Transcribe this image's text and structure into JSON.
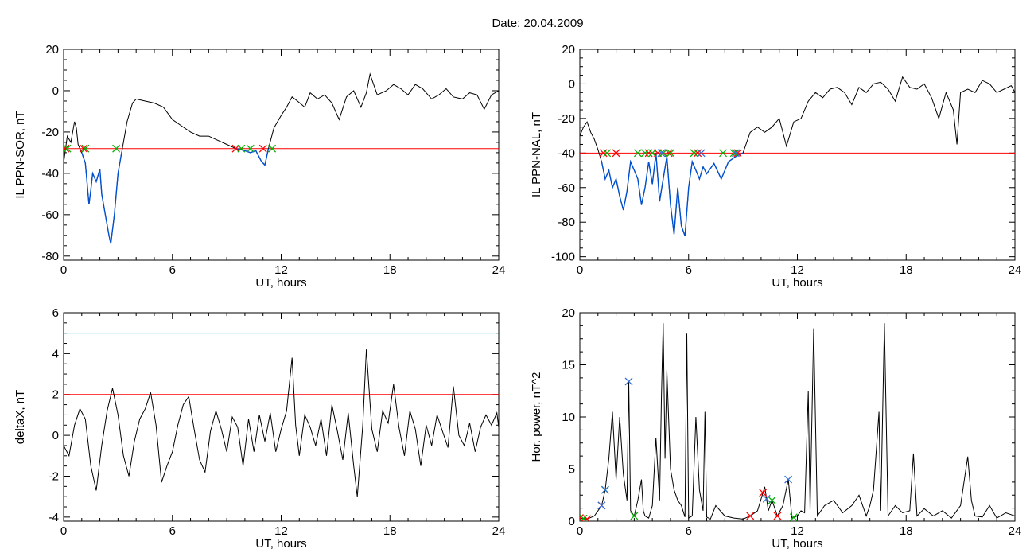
{
  "figure": {
    "title": "Date:  20.04.2009"
  },
  "colors": {
    "trace": "#000000",
    "threshold": "#ff0000",
    "level": "#00a0c8",
    "below": "#0050d0",
    "mark_red": "#ff0000",
    "mark_green": "#00b000",
    "mark_blue": "#2f6fd8"
  },
  "chart_data": [
    {
      "id": "ppn_sor",
      "type": "line",
      "xlabel": "UT, hours",
      "ylabel": "IL PPN-SOR, nT",
      "xlim": [
        0,
        24
      ],
      "ylim": [
        -82,
        20
      ],
      "xticks": [
        0,
        6,
        12,
        18,
        24
      ],
      "yticks": [
        20,
        0,
        -20,
        -40,
        -60,
        -80
      ],
      "threshold": -28,
      "series": [
        {
          "x": [
            0,
            0.2,
            0.4,
            0.6,
            0.7,
            0.8,
            1.0,
            1.2,
            1.4,
            1.5,
            1.6,
            1.8,
            2.0,
            2.1,
            2.3,
            2.5,
            2.6,
            2.8,
            3.0,
            3.2,
            3.5,
            3.8,
            4.0,
            4.5,
            5.0,
            5.5,
            6.0,
            6.5,
            7.0,
            7.5,
            8.0,
            8.5,
            9.0,
            9.5,
            10.0,
            10.3,
            10.6,
            10.9,
            11.1,
            11.3,
            11.6,
            12.0,
            12.3,
            12.6,
            12.9,
            13.3,
            13.6,
            14.0,
            14.4,
            14.8,
            15.2,
            15.6,
            16.0,
            16.4,
            16.7,
            16.9,
            17.3,
            17.8,
            18.2,
            18.6,
            19.0,
            19.4,
            19.8,
            20.3,
            20.7,
            21.1,
            21.5,
            22.0,
            22.4,
            22.8,
            23.2,
            23.6,
            24.0
          ],
          "y": [
            -35,
            -22,
            -25,
            -15,
            -18,
            -26,
            -30,
            -35,
            -55,
            -48,
            -40,
            -44,
            -38,
            -50,
            -60,
            -70,
            -74,
            -60,
            -40,
            -30,
            -15,
            -6,
            -4,
            -5,
            -6,
            -8,
            -14,
            -17,
            -20,
            -22,
            -22,
            -24,
            -26,
            -28,
            -29,
            -30,
            -29,
            -34,
            -36,
            -28,
            -18,
            -12,
            -8,
            -3,
            -5,
            -8,
            -1,
            -4,
            -2,
            -6,
            -14,
            -3,
            0,
            -8,
            -1,
            8,
            -2,
            0,
            3,
            1,
            -2,
            3,
            1,
            -4,
            -2,
            1,
            -3,
            -4,
            -1,
            -2,
            -9,
            -2,
            0
          ]
        }
      ],
      "marks": {
        "red_x": [
          0.1,
          1.1,
          9.5,
          11.0
        ],
        "green_x": [
          0.2,
          1.2,
          2.9,
          9.8,
          10.3,
          11.5
        ]
      }
    },
    {
      "id": "ppn_nal",
      "type": "line",
      "xlabel": "UT, hours",
      "ylabel": "IL PPN-NAL, nT",
      "xlim": [
        0,
        24
      ],
      "ylim": [
        -102,
        20
      ],
      "xticks": [
        0,
        6,
        12,
        18,
        24
      ],
      "yticks": [
        20,
        0,
        -20,
        -40,
        -60,
        -80,
        -100
      ],
      "threshold": -40,
      "series": [
        {
          "x": [
            0,
            0.2,
            0.4,
            0.6,
            0.8,
            1.0,
            1.2,
            1.4,
            1.6,
            1.8,
            2.0,
            2.2,
            2.4,
            2.6,
            2.8,
            3.0,
            3.2,
            3.4,
            3.6,
            3.8,
            4.0,
            4.2,
            4.4,
            4.6,
            4.8,
            5.0,
            5.2,
            5.4,
            5.6,
            5.8,
            6.0,
            6.2,
            6.4,
            6.6,
            6.8,
            7.0,
            7.4,
            7.8,
            8.2,
            8.6,
            9.0,
            9.4,
            9.8,
            10.2,
            10.6,
            11.0,
            11.4,
            11.8,
            12.2,
            12.6,
            13.0,
            13.4,
            13.8,
            14.2,
            14.6,
            15.0,
            15.4,
            15.8,
            16.2,
            16.6,
            17.0,
            17.4,
            17.8,
            18.2,
            18.6,
            19.0,
            19.4,
            19.8,
            20.2,
            20.6,
            20.8,
            21.0,
            21.4,
            21.8,
            22.2,
            22.6,
            23.0,
            23.4,
            23.8,
            24.0
          ],
          "y": [
            -30,
            -25,
            -22,
            -28,
            -32,
            -38,
            -45,
            -55,
            -50,
            -60,
            -55,
            -65,
            -73,
            -62,
            -45,
            -50,
            -55,
            -70,
            -60,
            -45,
            -58,
            -40,
            -68,
            -55,
            -42,
            -70,
            -87,
            -60,
            -82,
            -88,
            -60,
            -45,
            -50,
            -55,
            -48,
            -52,
            -46,
            -55,
            -45,
            -42,
            -40,
            -28,
            -25,
            -28,
            -25,
            -20,
            -36,
            -22,
            -20,
            -10,
            -5,
            -8,
            -3,
            -2,
            -5,
            -12,
            -2,
            -5,
            0,
            1,
            -3,
            -10,
            4,
            -2,
            -3,
            0,
            -8,
            -20,
            -5,
            -15,
            -35,
            -5,
            -3,
            -5,
            2,
            0,
            -5,
            -3,
            -1,
            -5
          ]
        }
      ],
      "marks": {
        "red_x": [
          1.3,
          2.0,
          3.8,
          4.3,
          4.9,
          6.5,
          8.7
        ],
        "green_x": [
          1.5,
          3.2,
          3.6,
          4.0,
          4.6,
          5.0,
          6.3,
          7.9,
          8.5
        ],
        "blue_x": [
          4.5,
          6.7,
          8.6
        ]
      }
    },
    {
      "id": "deltax",
      "type": "line",
      "xlabel": "UT, hours",
      "ylabel": "deltaX, nT",
      "xlim": [
        0,
        24
      ],
      "ylim": [
        -4.2,
        6
      ],
      "xticks": [
        0,
        6,
        12,
        18,
        24
      ],
      "yticks": [
        6,
        4,
        2,
        0,
        -2,
        -4
      ],
      "threshold": 2,
      "level": 5,
      "series": [
        {
          "x": [
            0,
            0.3,
            0.6,
            0.9,
            1.2,
            1.5,
            1.8,
            2.1,
            2.4,
            2.7,
            3.0,
            3.3,
            3.6,
            3.9,
            4.2,
            4.5,
            4.8,
            5.1,
            5.4,
            5.7,
            6.0,
            6.3,
            6.6,
            6.9,
            7.2,
            7.5,
            7.8,
            8.1,
            8.4,
            8.7,
            9.0,
            9.3,
            9.6,
            9.9,
            10.2,
            10.5,
            10.8,
            11.1,
            11.4,
            11.7,
            12.0,
            12.3,
            12.6,
            12.8,
            13.0,
            13.3,
            13.6,
            13.9,
            14.2,
            14.5,
            14.8,
            15.1,
            15.4,
            15.7,
            16.0,
            16.2,
            16.5,
            16.7,
            17.0,
            17.3,
            17.6,
            17.9,
            18.2,
            18.5,
            18.8,
            19.1,
            19.4,
            19.7,
            20.0,
            20.3,
            20.6,
            20.9,
            21.2,
            21.5,
            21.8,
            22.1,
            22.4,
            22.7,
            23.0,
            23.3,
            23.6,
            23.9,
            24.0
          ],
          "y": [
            -0.5,
            -1.0,
            0.5,
            1.3,
            0.8,
            -1.5,
            -2.7,
            -0.5,
            1.2,
            2.3,
            1.0,
            -1.0,
            -2.0,
            -0.3,
            0.8,
            1.3,
            2.1,
            0.5,
            -2.3,
            -1.5,
            -0.8,
            0.5,
            1.5,
            1.9,
            0.3,
            -1.2,
            -1.8,
            0.2,
            1.2,
            0.3,
            -0.8,
            0.9,
            0.4,
            -1.5,
            0.8,
            -0.8,
            1.0,
            -0.3,
            1.1,
            -0.8,
            0.3,
            1.2,
            3.8,
            0.5,
            -1.0,
            1.0,
            0.4,
            -0.5,
            0.8,
            -1.0,
            1.5,
            0.2,
            -1.2,
            1.1,
            -1.5,
            -3.0,
            0.5,
            4.2,
            0.3,
            -0.8,
            1.2,
            0.6,
            2.5,
            0.4,
            -1.0,
            1.2,
            0.3,
            -1.5,
            0.5,
            -0.5,
            1.0,
            0.2,
            -0.6,
            2.4,
            0.0,
            -0.5,
            0.6,
            -0.8,
            0.4,
            1.0,
            0.5,
            1.1,
            0.4
          ]
        }
      ]
    },
    {
      "id": "hor_power",
      "type": "line",
      "xlabel": "UT, hours",
      "ylabel": "Hor. power, nT^2",
      "xlim": [
        0,
        24
      ],
      "ylim": [
        0,
        20
      ],
      "xticks": [
        0,
        6,
        12,
        18,
        24
      ],
      "yticks": [
        20,
        15,
        10,
        5,
        0
      ],
      "series": [
        {
          "x": [
            0,
            0.4,
            0.8,
            1.2,
            1.4,
            1.6,
            1.8,
            2.0,
            2.2,
            2.4,
            2.6,
            2.7,
            2.8,
            3.0,
            3.2,
            3.4,
            3.5,
            3.6,
            3.8,
            4.0,
            4.2,
            4.4,
            4.5,
            4.6,
            4.7,
            4.8,
            5.0,
            5.2,
            5.4,
            5.6,
            5.8,
            5.9,
            6.0,
            6.2,
            6.4,
            6.6,
            6.8,
            6.9,
            7.0,
            7.2,
            7.5,
            8.0,
            8.5,
            9.0,
            9.4,
            9.8,
            10.2,
            10.4,
            10.6,
            10.9,
            11.2,
            11.5,
            11.7,
            12.0,
            12.2,
            12.4,
            12.6,
            12.7,
            12.9,
            13.1,
            13.5,
            14.0,
            14.5,
            15.0,
            15.4,
            15.8,
            16.0,
            16.2,
            16.5,
            16.6,
            16.8,
            17.0,
            17.4,
            17.8,
            18.2,
            18.4,
            18.6,
            19.0,
            19.5,
            20.0,
            20.5,
            21.0,
            21.4,
            21.6,
            21.8,
            22.2,
            22.6,
            23.0,
            23.5,
            24.0
          ],
          "y": [
            0.3,
            0.2,
            0.5,
            1.5,
            3.0,
            6.0,
            10.5,
            4.0,
            10.0,
            4.5,
            2.0,
            13.4,
            1.0,
            0.5,
            2.0,
            4.0,
            1.0,
            0.5,
            0.3,
            1.5,
            8.0,
            2.0,
            12.0,
            19.0,
            6.0,
            14.5,
            5.0,
            3.0,
            2.0,
            1.5,
            0.4,
            18.0,
            0.3,
            0.5,
            10.0,
            3.0,
            1.0,
            10.5,
            0.4,
            0.2,
            1.5,
            0.5,
            0.3,
            0.2,
            0.5,
            1.0,
            3.3,
            1.0,
            2.0,
            0.5,
            1.5,
            4.0,
            0.3,
            0.5,
            1.0,
            0.8,
            12.5,
            1.0,
            18.5,
            0.5,
            1.5,
            2.0,
            0.8,
            1.5,
            2.5,
            0.5,
            1.5,
            3.0,
            10.5,
            1.0,
            19.0,
            0.5,
            1.5,
            0.8,
            1.0,
            6.5,
            0.5,
            1.2,
            0.5,
            1.0,
            0.3,
            1.5,
            6.2,
            2.0,
            0.5,
            0.4,
            1.5,
            0.3,
            0.8,
            0.5
          ]
        }
      ],
      "marks": {
        "red_x": [
          0.0,
          0.4,
          1.2,
          9.4,
          10.1,
          10.9
        ],
        "green_x": [
          0.2,
          1.4,
          3.0,
          10.6,
          11.8
        ],
        "blue_x": [
          1.2,
          1.4,
          2.7,
          10.3,
          11.5
        ]
      }
    }
  ]
}
